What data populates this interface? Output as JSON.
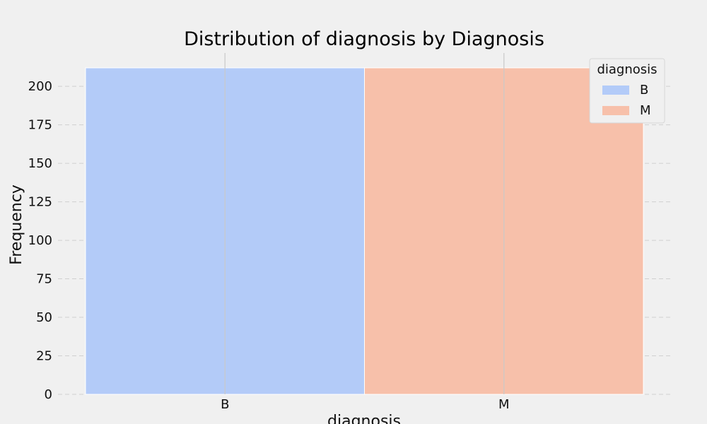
{
  "chart_data": {
    "type": "bar",
    "title": "Distribution of diagnosis by Diagnosis",
    "xlabel": "diagnosis",
    "ylabel": "Frequency",
    "categories": [
      "B",
      "M"
    ],
    "series": [
      {
        "name": "B",
        "values": [
          212,
          null
        ],
        "color": "#b3cbf8"
      },
      {
        "name": "M",
        "values": [
          null,
          212
        ],
        "color": "#f7c0aa"
      }
    ],
    "ylim": [
      0,
      212
    ],
    "yticks": [
      0,
      25,
      50,
      75,
      100,
      125,
      150,
      175,
      200
    ],
    "grid": true,
    "legend": {
      "title": "diagnosis",
      "position": "top-right"
    }
  }
}
